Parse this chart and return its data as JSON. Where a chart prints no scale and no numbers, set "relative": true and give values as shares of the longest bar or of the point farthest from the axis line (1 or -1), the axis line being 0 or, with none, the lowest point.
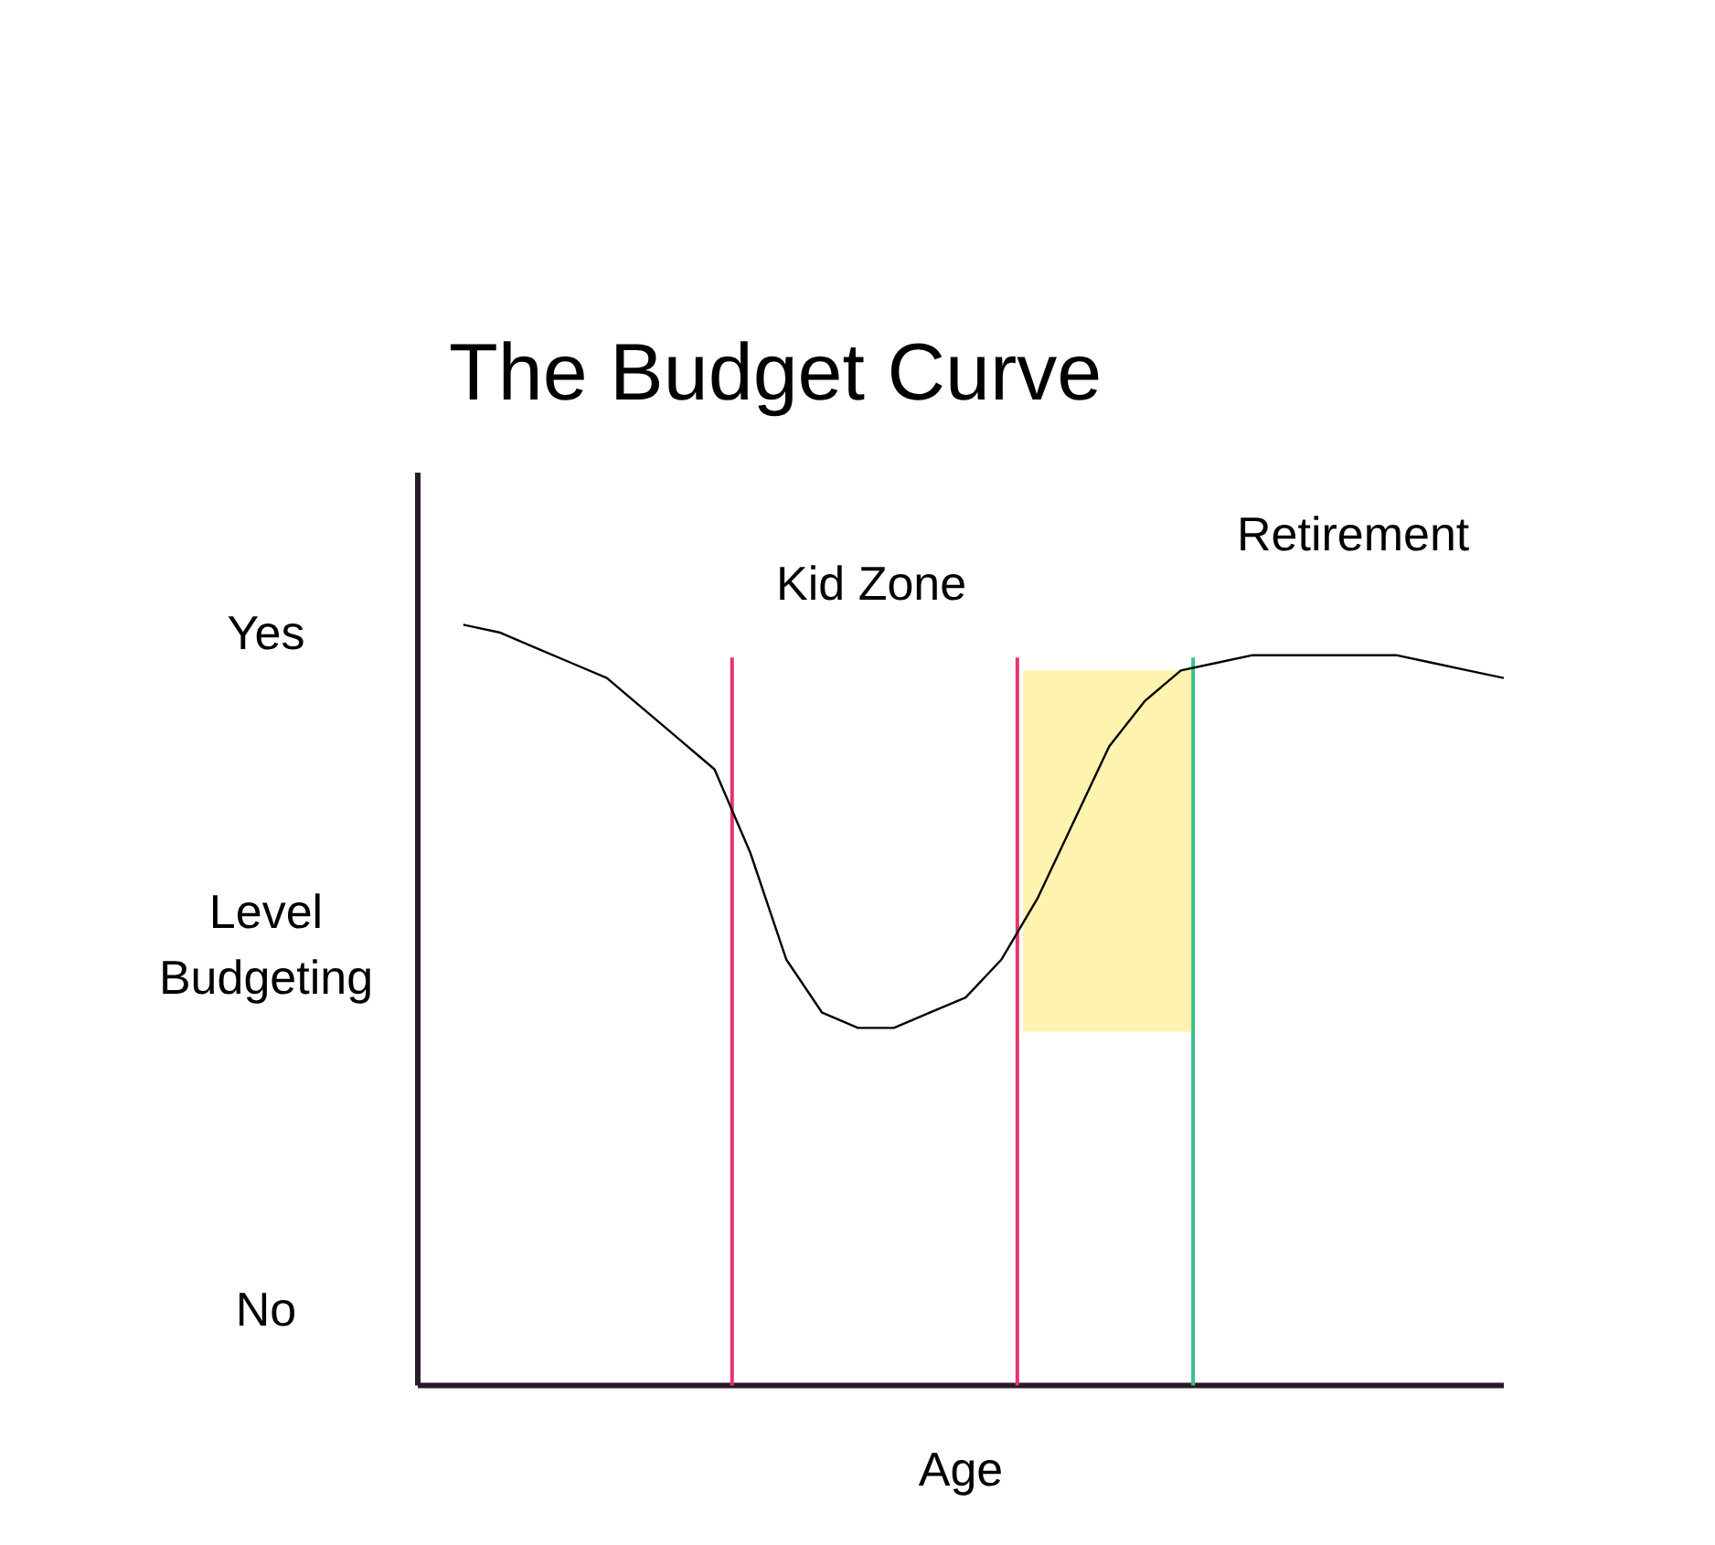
{
  "chart_data": {
    "type": "line",
    "title": "The Budget Curve",
    "xlabel": "Age",
    "relative": true,
    "marker": "none",
    "line_style": "solid",
    "categories": [
      null,
      null,
      null,
      null,
      null,
      null,
      null,
      null,
      null,
      null,
      null,
      null,
      null,
      null,
      null,
      null,
      null,
      null,
      null,
      null,
      null,
      null,
      null,
      null,
      null,
      null,
      null,
      null,
      null,
      null
    ],
    "series": [
      {
        "color": "#000000",
        "values": [
          1.0,
          0.99,
          0.97,
          0.95,
          0.93,
          0.89,
          0.85,
          0.81,
          0.7,
          0.56,
          0.49,
          0.47,
          0.47,
          0.49,
          0.51,
          0.56,
          0.64,
          0.74,
          0.84,
          0.9,
          0.94,
          0.95,
          0.96,
          0.96,
          0.96,
          0.96,
          0.96,
          0.95,
          0.94,
          0.93
        ]
      }
    ],
    "bands": [
      {
        "axis": "y",
        "from": 0.465,
        "to": 0.94,
        "color": "#fff3b0"
      }
    ],
    "annotations": [
      "Retirement",
      "Kid Zone",
      "Yes",
      "Level\nBudgeting",
      "No"
    ]
  }
}
